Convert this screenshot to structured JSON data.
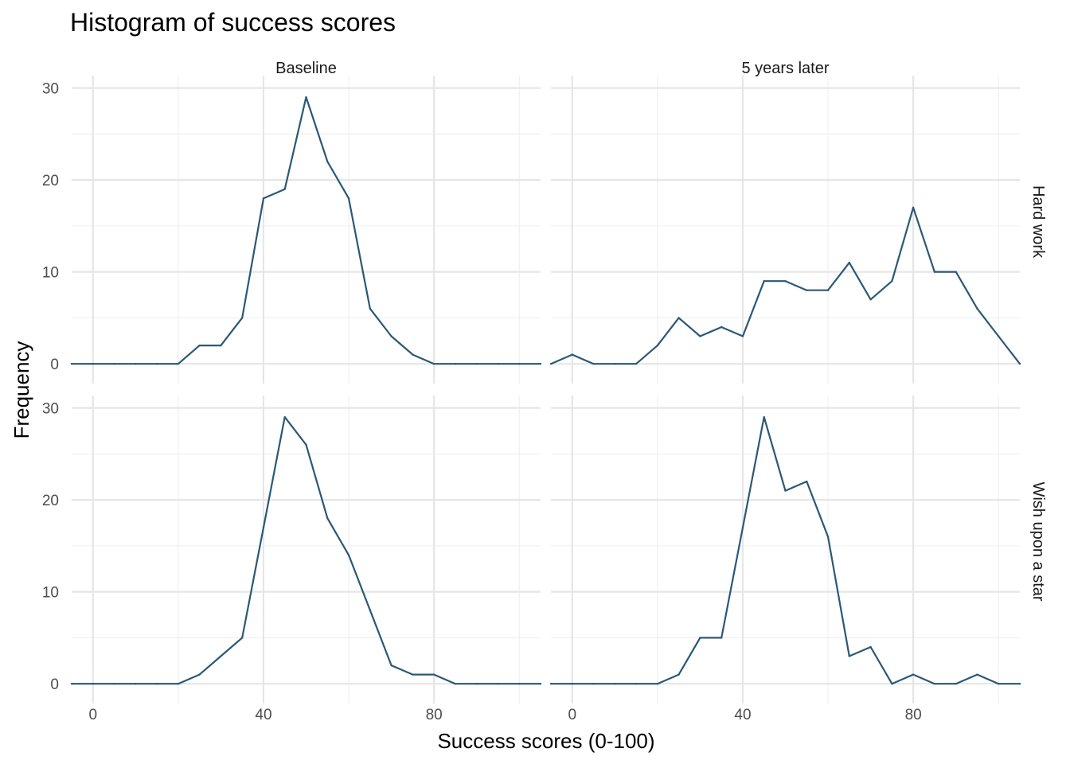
{
  "chart_data": {
    "type": "line",
    "title": "Histogram of success scores",
    "xlabel": "Success scores (0-100)",
    "ylabel": "Frequency",
    "xlim": [
      -5,
      105
    ],
    "ylim": [
      0,
      30
    ],
    "x_ticks": [
      0,
      40,
      80
    ],
    "y_ticks": [
      0,
      10,
      20,
      30
    ],
    "grid": true,
    "facet_columns": [
      "Baseline",
      "5 years later"
    ],
    "facet_rows": [
      "Hard work",
      "Wish upon a star"
    ],
    "x": [
      -5,
      0,
      5,
      10,
      15,
      20,
      25,
      30,
      35,
      40,
      45,
      50,
      55,
      60,
      65,
      70,
      75,
      80,
      85,
      90,
      95,
      100,
      105
    ],
    "color": "#2b5876",
    "panels": [
      {
        "column": "Baseline",
        "row": "Hard work",
        "values": [
          0,
          0,
          0,
          0,
          0,
          0,
          2,
          2,
          5,
          18,
          19,
          29,
          22,
          18,
          6,
          3,
          1,
          0,
          0,
          0,
          0,
          0,
          0
        ]
      },
      {
        "column": "5 years later",
        "row": "Hard work",
        "values": [
          0,
          1,
          0,
          0,
          0,
          2,
          5,
          3,
          4,
          3,
          9,
          9,
          8,
          8,
          11,
          7,
          9,
          17,
          10,
          10,
          6,
          3,
          0
        ]
      },
      {
        "column": "Baseline",
        "row": "Wish upon a star",
        "values": [
          0,
          0,
          0,
          0,
          0,
          0,
          1,
          3,
          5,
          17,
          29,
          26,
          18,
          14,
          8,
          2,
          1,
          1,
          0,
          0,
          0,
          0,
          0
        ]
      },
      {
        "column": "5 years later",
        "row": "Wish upon a star",
        "values": [
          0,
          0,
          0,
          0,
          0,
          0,
          1,
          5,
          5,
          17,
          29,
          21,
          22,
          16,
          3,
          4,
          0,
          1,
          0,
          0,
          1,
          0,
          0
        ]
      }
    ]
  }
}
